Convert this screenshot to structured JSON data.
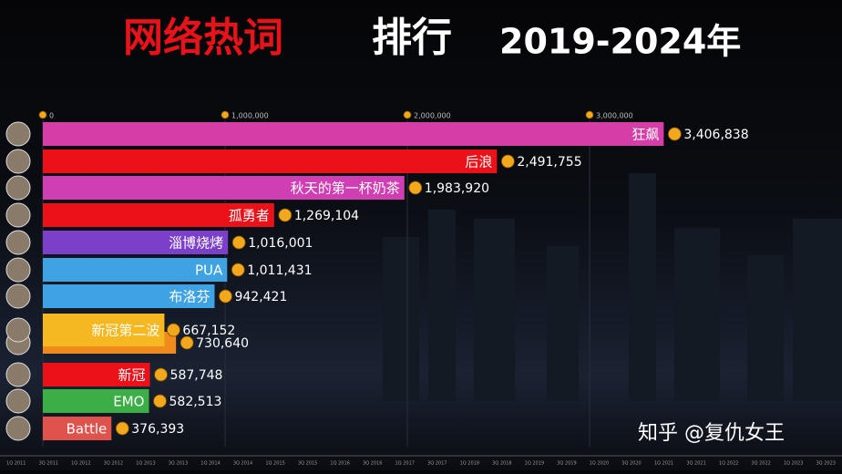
{
  "chart_data": {
    "type": "barh",
    "title": "网络热词",
    "title_rest": "排行",
    "subtitle": "2019-2024年",
    "categories": [
      "狂飙",
      "后浪",
      "秋天的第一杯奶茶",
      "孤勇者",
      "淄博烧烤",
      "PUA",
      "布洛芬",
      "新冠第二波",
      null,
      "新冠",
      "EMO",
      "Battle"
    ],
    "values": [
      3406838,
      2491755,
      1983920,
      1269104,
      1016001,
      1011431,
      942421,
      667152,
      730640,
      587748,
      582513,
      376393
    ],
    "value_labels": [
      "3,406,838",
      "2,491,755",
      "1,983,920",
      "1,269,104",
      "1,016,001",
      "1,011,431",
      "942,421",
      "667,152",
      "730,640",
      "587,748",
      "582,513",
      "376,393"
    ],
    "colors": [
      "#d43ea6",
      "#ec1018",
      "#cf3fb3",
      "#ec1018",
      "#7b3fc9",
      "#3fa2e3",
      "#3fa2e3",
      "#f6b820",
      "#f08a1c",
      "#ec1018",
      "#3cae46",
      "#e0524c"
    ],
    "xlim": [
      0,
      4385000
    ],
    "xticks": [
      0,
      {
        "value": 1000000,
        "label": "1,000,000"
      },
      {
        "value": 2000000,
        "label": "2,000,000"
      },
      {
        "value": 3000000,
        "label": "3,000,000"
      }
    ],
    "grid": true,
    "timeline": [
      "1Q 2011",
      "3Q 2011",
      "1Q 2012",
      "3Q 2012",
      "1Q 2013",
      "3Q 2013",
      "1Q 2014",
      "3Q 2014",
      "1Q 2015",
      "3Q 2015",
      "1Q 2016",
      "3Q 2016",
      "1Q 2017",
      "3Q 2017",
      "1Q 2018",
      "3Q 2018",
      "1Q 2019",
      "3Q 2019",
      "1Q 2020",
      "3Q 2020",
      "1Q 2021",
      "3Q 2021",
      "1Q 2022",
      "3Q 2022",
      "1Q 2023",
      "3Q 2023"
    ],
    "watermark": "知乎 @复仇女王"
  }
}
